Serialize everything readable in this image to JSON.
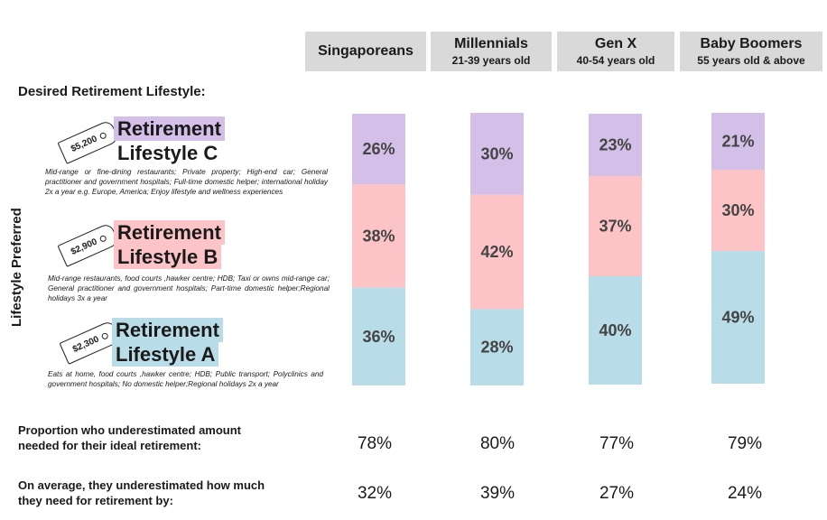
{
  "section_title": "Desired Retirement Lifestyle:",
  "y_axis_label": "Lifestyle Preferred",
  "tiers": [
    {
      "title_line1": "Retirement",
      "title_line2": "Lifestyle C",
      "price": "$5,200",
      "color": "#d4bfe8",
      "description": "Mid-range or fine-dining restaurants; Private property; High-end car; General practitioner and government hospitals; Full-time domestic helper; international holiday 2x a year e.g. Europe, America; Enjoy lifestyle and wellness experiences"
    },
    {
      "title_line1": "Retirement",
      "title_line2": "Lifestyle B",
      "price": "$2,900",
      "color": "#fcc4c6",
      "description": "Mid-range restaurants, food courts ,hawker centre; HDB; Taxi or owns mid-range car; General practitioner and government hospitals; Part-time domestic helper;Regional holidays 3x a year"
    },
    {
      "title_line1": "Retirement",
      "title_line2": "Lifestyle A",
      "price": "$2,300",
      "color": "#b9dde8",
      "description": "Eats at home, food courts ,hawker centre; HDB; Public transport; Polyclinics and government hospitals; No domestic helper;Regional holidays 2x a year"
    }
  ],
  "groups": [
    {
      "name": "Singaporeans",
      "sub": ""
    },
    {
      "name": "Millennials",
      "sub": "21-39 years old"
    },
    {
      "name": "Gen X",
      "sub": "40-54 years old"
    },
    {
      "name": "Baby Boomers",
      "sub": "55 years old & above"
    }
  ],
  "chart_data": {
    "type": "bar",
    "stacked": true,
    "normalized_percent": true,
    "categories": [
      "Singaporeans",
      "Millennials",
      "Gen X",
      "Baby Boomers"
    ],
    "series": [
      {
        "name": "Retirement Lifestyle A",
        "values": [
          36,
          28,
          40,
          49
        ],
        "labels": [
          "36%",
          "28%",
          "40%",
          "49%"
        ],
        "color": "#b9dde8"
      },
      {
        "name": "Retirement Lifestyle B",
        "values": [
          38,
          42,
          37,
          30
        ],
        "labels": [
          "38%",
          "42%",
          "37%",
          "30%"
        ],
        "color": "#fcc4c6"
      },
      {
        "name": "Retirement Lifestyle C",
        "values": [
          26,
          30,
          23,
          21
        ],
        "labels": [
          "26%",
          "30%",
          "23%",
          "21%"
        ],
        "color": "#d4bfe8"
      }
    ],
    "ylabel": "Lifestyle Preferred",
    "ylim": [
      0,
      100
    ],
    "grid": false,
    "legend": "left"
  },
  "rows": [
    {
      "label": "Proportion who underestimated amount needed for their ideal retirement:",
      "values": [
        "78%",
        "80%",
        "77%",
        "79%"
      ]
    },
    {
      "label": "On average, they underestimated how much they need for retirement by:",
      "values": [
        "32%",
        "39%",
        "27%",
        "24%"
      ]
    }
  ]
}
